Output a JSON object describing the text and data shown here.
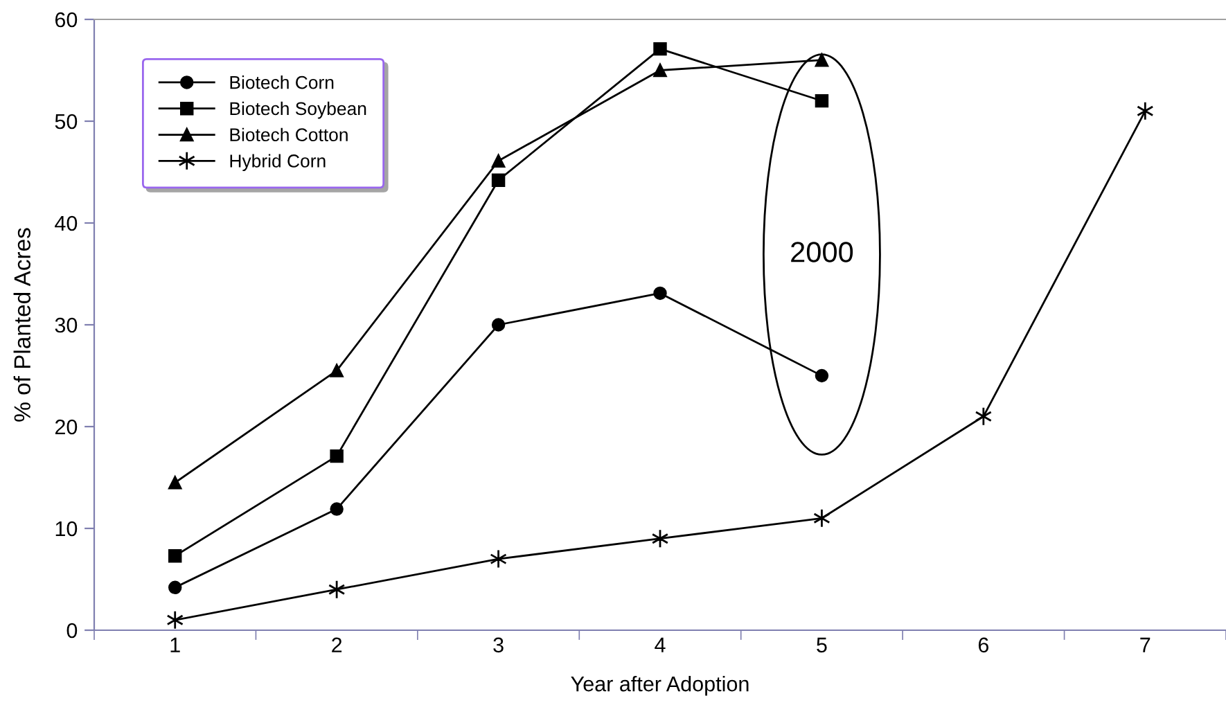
{
  "chart_data": {
    "type": "line",
    "xlabel": "Year after Adoption",
    "ylabel": "% of Planted Acres",
    "categories": [
      "1",
      "2",
      "3",
      "4",
      "5",
      "6",
      "7"
    ],
    "series": [
      {
        "name": "Biotech Corn",
        "color": "#000000",
        "marker": "circle",
        "values": [
          4.2,
          11.9,
          30,
          33.1,
          25,
          null,
          null
        ]
      },
      {
        "name": "Biotech Soybean",
        "color": "#000000",
        "marker": "square",
        "values": [
          7.3,
          17.1,
          44.2,
          57.1,
          52,
          null,
          null
        ]
      },
      {
        "name": "Biotech Cotton",
        "color": "#000000",
        "marker": "triangle",
        "values": [
          14.5,
          25.5,
          46.1,
          55,
          56,
          null,
          null
        ]
      },
      {
        "name": "Hybrid Corn",
        "color": "#000000",
        "marker": "cross",
        "values": [
          1,
          4,
          7,
          9,
          11,
          21,
          51
        ]
      }
    ],
    "ylim": [
      0,
      60
    ],
    "yticks": [
      0,
      10,
      20,
      30,
      40,
      50,
      60
    ],
    "grid": false,
    "legend": "top left",
    "line_style": "solid",
    "annotations": [
      "2000"
    ]
  }
}
